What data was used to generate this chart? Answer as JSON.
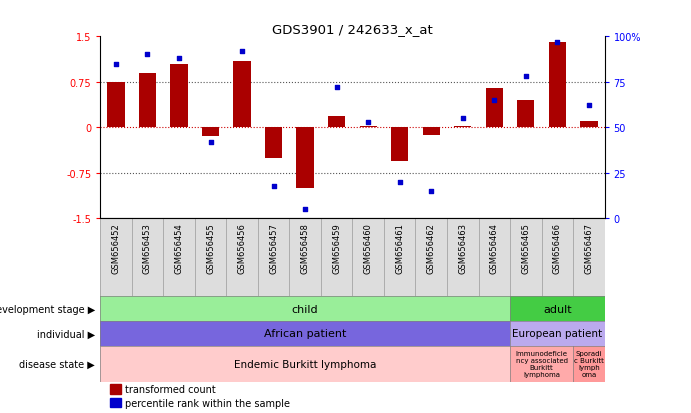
{
  "title": "GDS3901 / 242633_x_at",
  "samples": [
    "GSM656452",
    "GSM656453",
    "GSM656454",
    "GSM656455",
    "GSM656456",
    "GSM656457",
    "GSM656458",
    "GSM656459",
    "GSM656460",
    "GSM656461",
    "GSM656462",
    "GSM656463",
    "GSM656464",
    "GSM656465",
    "GSM656466",
    "GSM656467"
  ],
  "bar_values": [
    0.75,
    0.9,
    1.05,
    -0.15,
    1.1,
    -0.5,
    -1.0,
    0.18,
    0.02,
    -0.55,
    -0.12,
    0.02,
    0.65,
    0.45,
    1.4,
    0.1
  ],
  "dot_values": [
    85,
    90,
    88,
    42,
    92,
    18,
    5,
    72,
    53,
    20,
    15,
    55,
    65,
    78,
    97,
    62
  ],
  "ylim": [
    -1.5,
    1.5
  ],
  "yticks_left": [
    -1.5,
    -0.75,
    0,
    0.75,
    1.5
  ],
  "yticks_right": [
    0,
    25,
    50,
    75,
    100
  ],
  "bar_color": "#AA0000",
  "dot_color": "#0000CC",
  "dotted_line_color": "#555555",
  "zero_line_color": "#CC0000",
  "bar_width": 0.55,
  "dev_stage": {
    "child": {
      "start": 0,
      "end": 13,
      "color": "#99EE99",
      "label": "child"
    },
    "adult": {
      "start": 13,
      "end": 16,
      "color": "#44CC44",
      "label": "adult"
    }
  },
  "individual": {
    "african": {
      "start": 0,
      "end": 13,
      "color": "#7766DD",
      "label": "African patient"
    },
    "european": {
      "start": 13,
      "end": 16,
      "color": "#BBAAEE",
      "label": "European patient"
    }
  },
  "disease": {
    "endemic": {
      "start": 0,
      "end": 13,
      "color": "#FFCCCC",
      "label": "Endemic Burkitt lymphoma"
    },
    "immunodeficiency": {
      "start": 13,
      "end": 15,
      "color": "#FFAAAA",
      "label": "Immunodeficiency associated Burkitt lymphoma"
    },
    "sporadic": {
      "start": 15,
      "end": 16,
      "color": "#FF9999",
      "label": "Sporadic Burkitt\nlymphoma"
    }
  },
  "legend": {
    "bar_label": "transformed count",
    "dot_label": "percentile rank within the sample"
  },
  "row_labels": [
    "development stage",
    "individual",
    "disease state"
  ]
}
